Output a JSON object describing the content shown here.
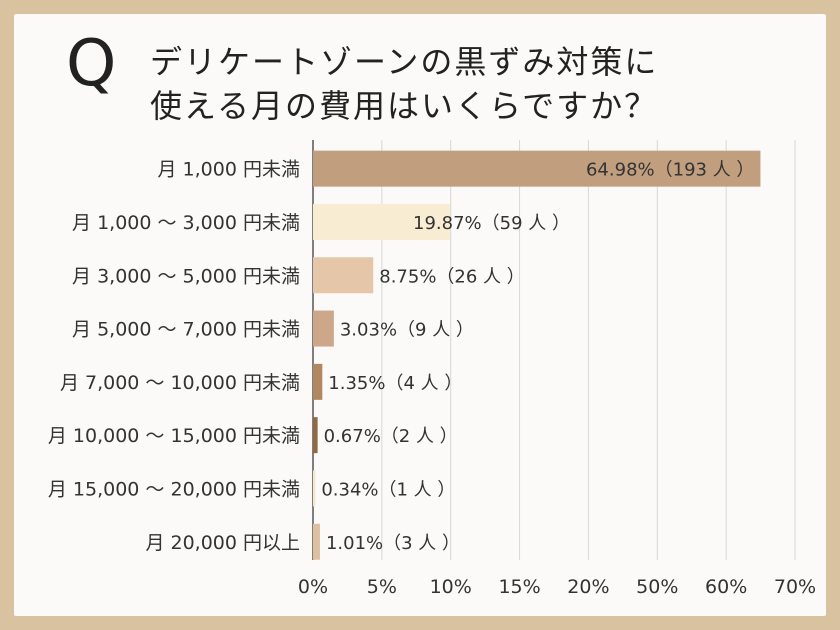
{
  "question_mark": "Q",
  "title": "デリケートゾーンの黒ずみ対策に\n使える月の費用はいくらですか？",
  "chart_data": {
    "type": "bar",
    "orientation": "horizontal",
    "categories": [
      "月 1,000 円未満",
      "月 1,000 〜 3,000 円未満",
      "月 3,000 〜 5,000 円未満",
      "月 5,000 〜 7,000 円未満",
      "月 7,000 〜 10,000 円未満",
      "月 10,000 〜 15,000 円未満",
      "月 15,000 〜 20,000 円未満",
      "月 20,000 円以上"
    ],
    "values": [
      64.98,
      19.87,
      8.75,
      3.03,
      1.35,
      0.67,
      0.34,
      1.01
    ],
    "data_labels": [
      "64.98%（193 人 ）",
      "19.87%（59 人 ）",
      "8.75%（26 人 ）",
      "3.03%（9 人 ）",
      "1.35%（4 人 ）",
      "0.67%（2 人 ）",
      "0.34%（1 人 ）",
      "1.01%（3 人 ）"
    ],
    "bar_colors": [
      "#c19e7e",
      "#f8ecd3",
      "#e5c6a8",
      "#cda789",
      "#b08760",
      "#8f6a43",
      "#f3e7cf",
      "#dcc0a0"
    ],
    "xlim": [
      0,
      70
    ],
    "xticks": [
      "0%",
      "5%",
      "10%",
      "15%",
      "20%",
      "50%",
      "60%",
      "70%"
    ],
    "grid": true
  }
}
